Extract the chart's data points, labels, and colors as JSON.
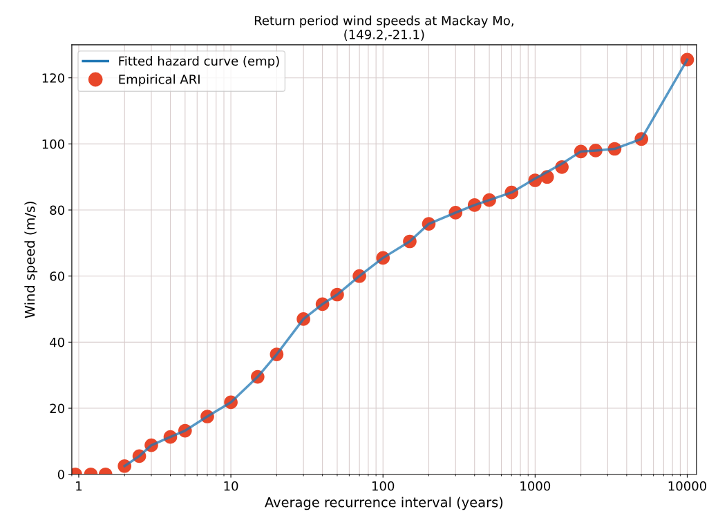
{
  "chart_data": {
    "type": "line",
    "title": "Return period wind speeds at Mackay Mo,\n(149.2,-21.1)",
    "xlabel": "Average recurrence interval (years)",
    "ylabel": "Wind speed (m/s)",
    "log": "x",
    "xlim": [
      0.9,
      11500
    ],
    "ylim": [
      0,
      130
    ],
    "xticks": [
      1,
      10,
      100,
      1000,
      10000
    ],
    "yticks": [
      0,
      20,
      40,
      60,
      80,
      100,
      120
    ],
    "grid": true,
    "legend": "top left",
    "series": [
      {
        "name": "Empirical ARI",
        "type": "scatter",
        "marker": "circle",
        "color": "#e8472a",
        "x": [
          0.95,
          1.2,
          1.5,
          2,
          2.5,
          3,
          4,
          5,
          7,
          10,
          15,
          20,
          30,
          40,
          50,
          70,
          100,
          150,
          200,
          300,
          400,
          500,
          700,
          1000,
          1200,
          1500,
          2000,
          2500,
          3333,
          5000,
          10000
        ],
        "values": [
          0,
          0,
          0,
          2.5,
          5.5,
          8.8,
          11.3,
          13.2,
          17.5,
          21.8,
          29.5,
          36.3,
          47,
          51.5,
          54.4,
          60,
          65.5,
          70.5,
          75.8,
          79.2,
          81.5,
          83,
          85.3,
          89,
          90,
          93,
          97.7,
          98,
          98.5,
          101.5,
          125.5
        ]
      },
      {
        "name": "Fitted hazard curve (emp)",
        "color": "#1f77b4",
        "x": [
          2,
          2.5,
          3,
          4,
          5,
          7,
          10,
          15,
          20,
          30,
          40,
          50,
          70,
          100,
          150,
          200,
          300,
          400,
          500,
          700,
          1000,
          1200,
          1500,
          2000,
          2500,
          3333,
          5000,
          10000
        ],
        "values": [
          2.5,
          5.5,
          8.8,
          11.3,
          13.2,
          17.5,
          21.8,
          29.5,
          36.3,
          47,
          51.5,
          54.4,
          60,
          65.5,
          70.5,
          75.8,
          79.2,
          81.5,
          83,
          85.3,
          89.5,
          91.5,
          94,
          97.7,
          98,
          98.5,
          101.5,
          125.5
        ]
      }
    ]
  }
}
